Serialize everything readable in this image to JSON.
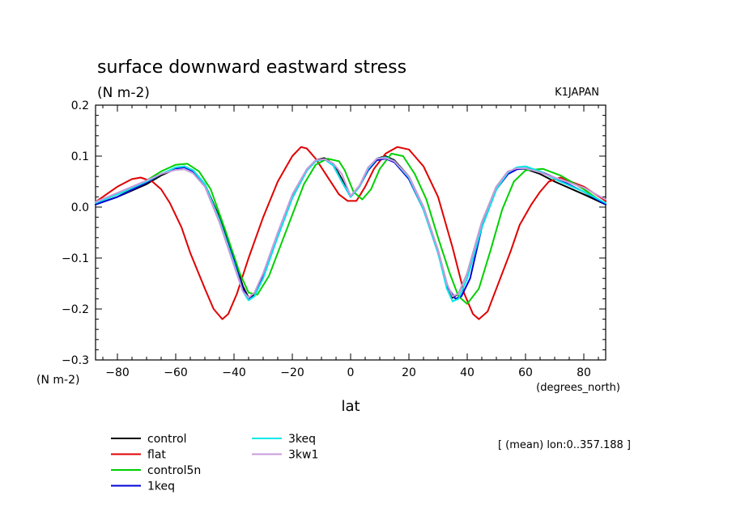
{
  "chart_data": {
    "type": "line",
    "title": "surface downward eastward stress",
    "units": "(N m-2)",
    "model": "K1JAPAN",
    "xlabel": "lat",
    "x_units": "(degrees_north)",
    "y_units": "(N m-2)",
    "note": "[ (mean) lon:0..357.188 ]",
    "xlim": [
      -87.5,
      87.5
    ],
    "ylim": [
      -0.3,
      0.2
    ],
    "x_ticks": [
      -80,
      -60,
      -40,
      -20,
      0,
      20,
      40,
      60,
      80
    ],
    "y_ticks": [
      -0.3,
      -0.2,
      -0.1,
      0.0,
      0.1,
      0.2
    ],
    "y_tick_labels": [
      "−0.3",
      "−0.2",
      "−0.1",
      "0.0",
      "0.1",
      "0.2"
    ],
    "x_tick_labels": [
      "−80",
      "−60",
      "−40",
      "−20",
      "0",
      "20",
      "40",
      "60",
      "80"
    ],
    "grid": false,
    "legend_position": "bottom-left",
    "series": [
      {
        "name": "control",
        "color": "#000000",
        "x": [
          -87.5,
          -80,
          -70,
          -65,
          -60,
          -57,
          -54,
          -50,
          -45,
          -40,
          -37,
          -35,
          -33,
          -30,
          -25,
          -20,
          -15,
          -12,
          -9,
          -6,
          -3,
          0,
          3,
          6,
          9,
          12,
          15,
          20,
          25,
          30,
          33,
          35,
          37,
          40,
          45,
          50,
          54,
          57,
          60,
          65,
          70,
          80,
          87.5
        ],
        "values": [
          0.005,
          0.02,
          0.045,
          0.062,
          0.075,
          0.08,
          0.072,
          0.045,
          -0.02,
          -0.1,
          -0.155,
          -0.178,
          -0.172,
          -0.135,
          -0.055,
          0.02,
          0.072,
          0.092,
          0.096,
          0.085,
          0.055,
          0.02,
          0.04,
          0.075,
          0.095,
          0.1,
          0.092,
          0.06,
          0.0,
          -0.085,
          -0.15,
          -0.178,
          -0.17,
          -0.13,
          -0.03,
          0.04,
          0.07,
          0.075,
          0.075,
          0.065,
          0.05,
          0.025,
          0.005
        ]
      },
      {
        "name": "flat",
        "color": "#e00000",
        "x": [
          -87.5,
          -80,
          -75,
          -72,
          -68,
          -65,
          -62,
          -58,
          -55,
          -50,
          -47,
          -44,
          -42,
          -39,
          -35,
          -30,
          -25,
          -20,
          -17,
          -15,
          -12,
          -8,
          -4,
          -1,
          2,
          5,
          8,
          12,
          16,
          20,
          25,
          30,
          35,
          39,
          42,
          44,
          47,
          50,
          55,
          58,
          62,
          65,
          68,
          72,
          80,
          87.5
        ],
        "values": [
          0.01,
          0.04,
          0.055,
          0.058,
          0.05,
          0.035,
          0.008,
          -0.04,
          -0.09,
          -0.16,
          -0.2,
          -0.22,
          -0.21,
          -0.17,
          -0.1,
          -0.02,
          0.05,
          0.1,
          0.118,
          0.115,
          0.095,
          0.06,
          0.025,
          0.012,
          0.012,
          0.04,
          0.075,
          0.105,
          0.118,
          0.113,
          0.08,
          0.02,
          -0.08,
          -0.17,
          -0.21,
          -0.22,
          -0.205,
          -0.16,
          -0.085,
          -0.035,
          0.005,
          0.03,
          0.05,
          0.058,
          0.04,
          0.012
        ]
      },
      {
        "name": "control5n",
        "color": "#00d000",
        "x": [
          -87.5,
          -80,
          -72,
          -65,
          -60,
          -56,
          -52,
          -48,
          -43,
          -38,
          -35,
          -32,
          -28,
          -24,
          -20,
          -16,
          -12,
          -8,
          -4,
          -2,
          1,
          4,
          7,
          10,
          14,
          18,
          22,
          26,
          30,
          34,
          37,
          40,
          44,
          48,
          52,
          56,
          60,
          66,
          72,
          80,
          87.5
        ],
        "values": [
          0.005,
          0.02,
          0.045,
          0.07,
          0.083,
          0.085,
          0.07,
          0.035,
          -0.045,
          -0.13,
          -0.168,
          -0.172,
          -0.135,
          -0.075,
          -0.015,
          0.045,
          0.083,
          0.095,
          0.09,
          0.072,
          0.03,
          0.015,
          0.035,
          0.075,
          0.105,
          0.1,
          0.065,
          0.015,
          -0.06,
          -0.13,
          -0.175,
          -0.19,
          -0.16,
          -0.085,
          -0.005,
          0.05,
          0.072,
          0.075,
          0.062,
          0.035,
          0.005
        ]
      },
      {
        "name": "1keq",
        "color": "#0000d8",
        "x": [
          -87.5,
          -80,
          -70,
          -65,
          -60,
          -57,
          -54,
          -50,
          -45,
          -40,
          -37,
          -35,
          -33,
          -30,
          -25,
          -20,
          -15,
          -12,
          -9,
          -6,
          -3,
          0,
          3,
          6,
          9,
          12,
          15,
          20,
          25,
          30,
          33,
          36,
          38,
          41,
          45,
          50,
          54,
          57,
          60,
          65,
          70,
          80,
          87.5
        ],
        "values": [
          0.005,
          0.02,
          0.048,
          0.065,
          0.076,
          0.078,
          0.07,
          0.042,
          -0.025,
          -0.105,
          -0.16,
          -0.18,
          -0.175,
          -0.138,
          -0.058,
          0.018,
          0.072,
          0.09,
          0.094,
          0.082,
          0.05,
          0.02,
          0.04,
          0.072,
          0.092,
          0.095,
          0.088,
          0.055,
          -0.005,
          -0.09,
          -0.155,
          -0.18,
          -0.175,
          -0.14,
          -0.04,
          0.035,
          0.065,
          0.074,
          0.076,
          0.07,
          0.058,
          0.03,
          0.005
        ]
      },
      {
        "name": "3keq",
        "color": "#00e8e8",
        "x": [
          -87.5,
          -80,
          -70,
          -65,
          -60,
          -57,
          -54,
          -50,
          -45,
          -40,
          -37,
          -35,
          -33,
          -30,
          -25,
          -20,
          -15,
          -12,
          -9,
          -6,
          -3,
          0,
          3,
          6,
          9,
          12,
          15,
          20,
          25,
          30,
          33,
          35,
          37,
          40,
          45,
          50,
          54,
          57,
          60,
          65,
          70,
          80,
          87.5
        ],
        "values": [
          0.008,
          0.025,
          0.05,
          0.065,
          0.078,
          0.08,
          0.072,
          0.045,
          -0.025,
          -0.11,
          -0.165,
          -0.183,
          -0.175,
          -0.14,
          -0.058,
          0.018,
          0.072,
          0.09,
          0.094,
          0.082,
          0.05,
          0.02,
          0.04,
          0.075,
          0.095,
          0.098,
          0.09,
          0.058,
          -0.005,
          -0.09,
          -0.16,
          -0.185,
          -0.18,
          -0.14,
          -0.04,
          0.035,
          0.068,
          0.078,
          0.08,
          0.07,
          0.055,
          0.03,
          0.008
        ]
      },
      {
        "name": "3kw1",
        "color": "#c89bdc",
        "x": [
          -87.5,
          -80,
          -70,
          -65,
          -60,
          -57,
          -54,
          -50,
          -45,
          -40,
          -37,
          -35,
          -33,
          -30,
          -25,
          -20,
          -15,
          -12,
          -9,
          -6,
          -3,
          0,
          3,
          6,
          9,
          12,
          15,
          20,
          25,
          30,
          33,
          35,
          37,
          40,
          45,
          50,
          54,
          57,
          60,
          65,
          70,
          80,
          87.5
        ],
        "values": [
          0.01,
          0.028,
          0.052,
          0.065,
          0.073,
          0.074,
          0.066,
          0.04,
          -0.03,
          -0.115,
          -0.165,
          -0.178,
          -0.168,
          -0.13,
          -0.05,
          0.025,
          0.075,
          0.092,
          0.094,
          0.086,
          0.065,
          0.022,
          0.042,
          0.078,
          0.095,
          0.096,
          0.09,
          0.06,
          0.0,
          -0.085,
          -0.15,
          -0.175,
          -0.17,
          -0.13,
          -0.03,
          0.04,
          0.07,
          0.076,
          0.076,
          0.068,
          0.058,
          0.038,
          0.015
        ]
      }
    ]
  }
}
